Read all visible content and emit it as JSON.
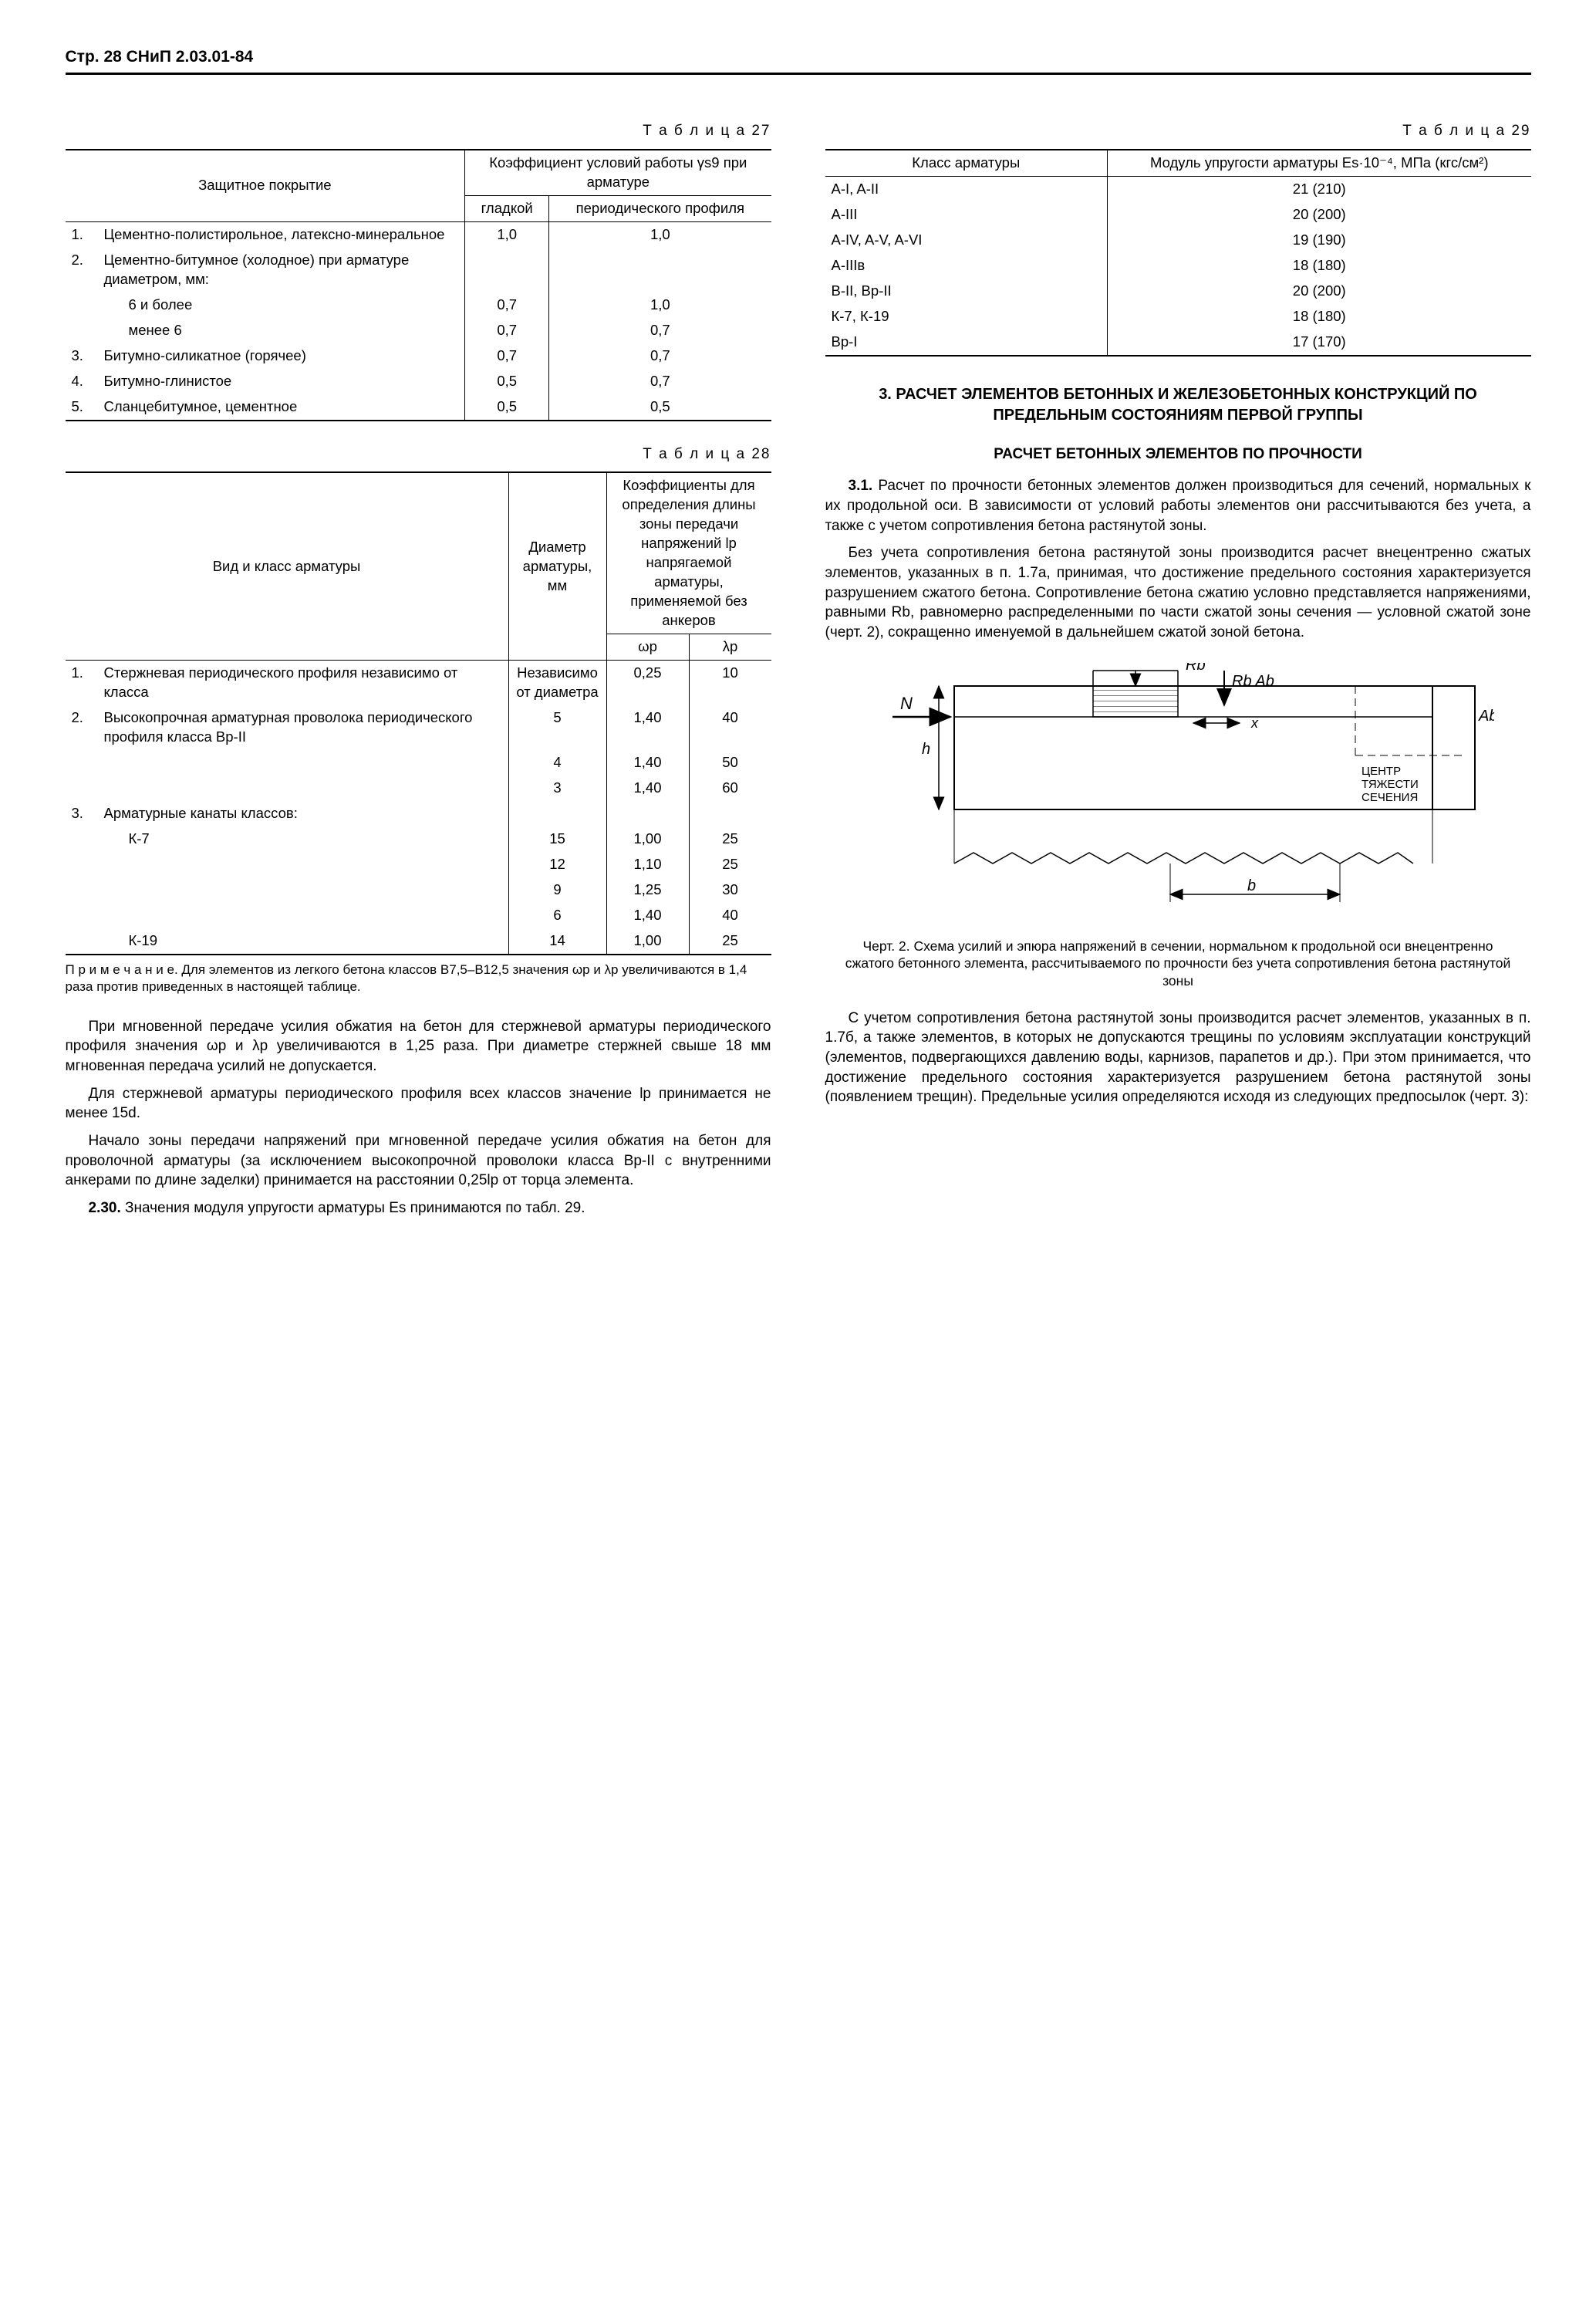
{
  "page_header": "Стр. 28 СНиП 2.03.01-84",
  "table27": {
    "caption": "Т а б л и ц а  27",
    "head": {
      "c1": "Защитное покрытие",
      "c2": "Коэффициент условий работы γs9 при арматуре",
      "s1": "гладкой",
      "s2": "периодического профиля"
    },
    "rows": [
      {
        "n": "1.",
        "label": "Цементно-полистирольное, латексно-минеральное",
        "v1": "1,0",
        "v2": "1,0"
      },
      {
        "n": "2.",
        "label": "Цементно-битумное (холодное) при арматуре диаметром, мм:",
        "v1": "",
        "v2": ""
      },
      {
        "n": "",
        "label": "6 и более",
        "indent": true,
        "v1": "0,7",
        "v2": "1,0"
      },
      {
        "n": "",
        "label": "менее 6",
        "indent": true,
        "v1": "0,7",
        "v2": "0,7"
      },
      {
        "n": "3.",
        "label": "Битумно-силикатное (горячее)",
        "v1": "0,7",
        "v2": "0,7"
      },
      {
        "n": "4.",
        "label": "Битумно-глинистое",
        "v1": "0,5",
        "v2": "0,7"
      },
      {
        "n": "5.",
        "label": "Сланцебитумное, цементное",
        "v1": "0,5",
        "v2": "0,5"
      }
    ]
  },
  "table28": {
    "caption": "Т а б л и ц а  28",
    "head": {
      "c1": "Вид и класс арматуры",
      "c2": "Диаметр арматуры, мм",
      "c3": "Коэффициенты для определения длины зоны передачи напряжений lp напрягаемой арматуры, применяемой без анкеров",
      "s1": "ωp",
      "s2": "λp"
    },
    "rows": [
      {
        "n": "1.",
        "label": "Стержневая периодического профиля независимо от класса",
        "dia": "Независимо от диаметра",
        "w": "0,25",
        "l": "10"
      },
      {
        "n": "2.",
        "label": "Высокопрочная арматурная проволока периодического профиля класса Вр-II",
        "dia": "5",
        "w": "1,40",
        "l": "40"
      },
      {
        "n": "",
        "label": "",
        "dia": "4",
        "w": "1,40",
        "l": "50"
      },
      {
        "n": "",
        "label": "",
        "dia": "3",
        "w": "1,40",
        "l": "60"
      },
      {
        "n": "3.",
        "label": "Арматурные канаты классов:",
        "dia": "",
        "w": "",
        "l": ""
      },
      {
        "n": "",
        "label": "К-7",
        "indent": true,
        "dia": "15",
        "w": "1,00",
        "l": "25"
      },
      {
        "n": "",
        "label": "",
        "dia": "12",
        "w": "1,10",
        "l": "25"
      },
      {
        "n": "",
        "label": "",
        "dia": "9",
        "w": "1,25",
        "l": "30"
      },
      {
        "n": "",
        "label": "",
        "dia": "6",
        "w": "1,40",
        "l": "40"
      },
      {
        "n": "",
        "label": "К-19",
        "indent": true,
        "dia": "14",
        "w": "1,00",
        "l": "25"
      }
    ],
    "note": "П р и м е ч а н и е. Для элементов из легкого бетона классов В7,5–В12,5 значения ωp и λp увеличиваются в 1,4 раза против приведенных в настоящей таблице."
  },
  "left_paragraphs": {
    "p1": "При мгновенной передаче усилия обжатия на бетон для стержневой арматуры периодического профиля значения ωp и λp увеличиваются в 1,25 раза. При диаметре стержней свыше 18 мм мгновенная передача усилий не допускается.",
    "p2": "Для стержневой арматуры периодического профиля всех классов значение lp принимается не менее 15d.",
    "p3": "Начало зоны передачи напряжений при мгновенной передаче усилия обжатия на бетон для проволочной арматуры (за исключением высокопрочной проволоки класса Вр-II с внутренними анкерами по длине заделки) принимается на расстоянии 0,25lp от торца элемента.",
    "p4_label": "2.30.",
    "p4": " Значения модуля упругости арматуры Es принимаются по табл. 29."
  },
  "table29": {
    "caption": "Т а б л и ц а  29",
    "head": {
      "c1": "Класс арматуры",
      "c2": "Модуль упругости арматуры Es·10⁻⁴, МПа (кгс/см²)"
    },
    "rows": [
      {
        "c": "A-I, A-II",
        "v": "21 (210)"
      },
      {
        "c": "A-III",
        "v": "20 (200)"
      },
      {
        "c": "A-IV, A-V, A-VI",
        "v": "19 (190)"
      },
      {
        "c": "A-IIIв",
        "v": "18 (180)"
      },
      {
        "c": "B-II, Вр-II",
        "v": "20 (200)"
      },
      {
        "c": "К-7, К-19",
        "v": "18 (180)"
      },
      {
        "c": "Вр-I",
        "v": "17 (170)"
      }
    ]
  },
  "section3": {
    "title": "3. РАСЧЕТ ЭЛЕМЕНТОВ БЕТОННЫХ И ЖЕЛЕЗОБЕТОННЫХ КОНСТРУКЦИЙ ПО ПРЕДЕЛЬНЫМ СОСТОЯНИЯМ ПЕРВОЙ ГРУППЫ",
    "sub": "РАСЧЕТ БЕТОННЫХ ЭЛЕМЕНТОВ ПО ПРОЧНОСТИ",
    "p1_label": "3.1.",
    "p1": " Расчет по прочности бетонных элементов должен производиться для сечений, нормальных к их продольной оси. В зависимости от условий работы элементов они рассчитываются без учета, а также с учетом сопротивления бетона растянутой зоны.",
    "p2": "Без учета сопротивления бетона растянутой зоны производится расчет внецентренно сжатых элементов, указанных в п. 1.7а, принимая, что достижение предельного состояния характеризуется разрушением сжатого бетона. Сопротивление бетона сжатию условно представляется напряжениями, равными Rb, равномерно распределенными по части сжатой зоны сечения — условной сжатой зоне (черт. 2), сокращенно именуемой в дальнейшем сжатой зоной бетона.",
    "fig_caption": "Черт. 2. Схема усилий и эпюра напряжений в сечении, нормальном к продольной оси внецентренно сжатого бетонного элемента, рассчитываемого по прочности без учета сопротивления бетона растянутой зоны",
    "p3": "С учетом сопротивления бетона растянутой зоны производится расчет элементов, указанных в п. 1.7б, а также элементов, в которых не допускаются трещины по условиям эксплуатации конструкций (элементов, подвергающихся давлению воды, карнизов, парапетов и др.). При этом принимается, что достижение предельного состояния характеризуется разрушением бетона растянутой зоны (появлением трещин). Предельные усилия определяются исходя из следующих предпосылок (черт. 3):"
  },
  "fig2": {
    "labels": {
      "N": "N",
      "Rb": "Rb",
      "RbAb": "Rb Ab",
      "Ab": "Ab",
      "x": "x",
      "h": "h",
      "b": "b",
      "center": "ЦЕНТР\nТЯЖЕСТИ\nСЕЧЕНИЯ"
    }
  }
}
